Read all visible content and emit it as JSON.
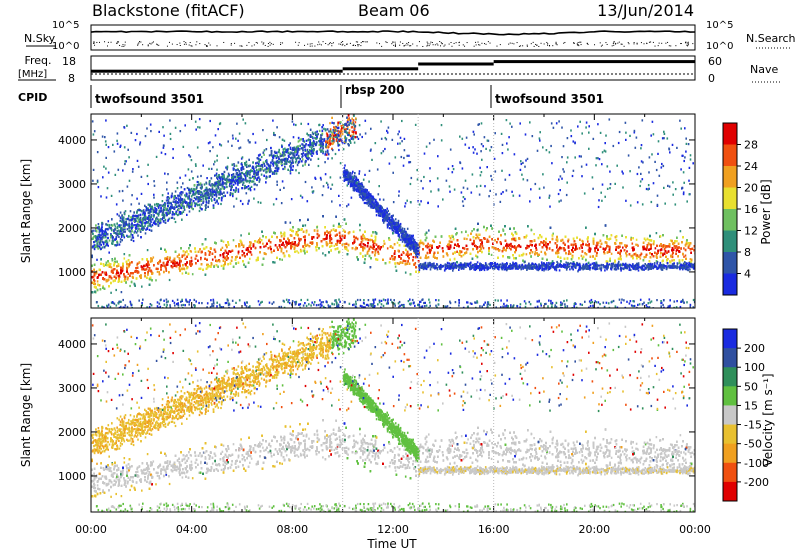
{
  "header": {
    "station": "Blackstone (fitACF)",
    "beam": "Beam 06",
    "date": "13/Jun/2014"
  },
  "labels": {
    "nsky": "N.Sky",
    "nsearch": "N.Search",
    "freq_top": "Freq.",
    "freq_unit": "[MHz]",
    "nave": "Nave",
    "cpid": "CPID",
    "xlabel": "Time UT",
    "ylabel": "Slant Range [km]",
    "power_cb": "Power [dB]",
    "vel_cb": "Velocity [m s⁻¹]"
  },
  "chart_data": [
    {
      "type": "line",
      "name": "noise-panel",
      "left_ticks": [
        "10^5",
        "10^0"
      ],
      "right_ticks": [
        "10^5",
        "10^0"
      ]
    },
    {
      "type": "line",
      "name": "freq-nave-panel",
      "left_ticks": [
        "18",
        "8"
      ],
      "right_ticks": [
        "60",
        "0"
      ],
      "xlim": [
        0,
        24
      ],
      "nave_steps": [
        {
          "x0": 0,
          "x1": 10,
          "v": 22
        },
        {
          "x0": 10,
          "x1": 13,
          "v": 28
        },
        {
          "x0": 13,
          "x1": 16,
          "v": 40
        },
        {
          "x0": 16,
          "x1": 24,
          "v": 46
        }
      ],
      "freq_level": 10.5
    },
    {
      "type": "table",
      "name": "cpid-panel",
      "programs": [
        {
          "label": "twofsound 3501",
          "start": 0,
          "end": 10
        },
        {
          "label": "rbsp 200",
          "start": 10,
          "end": 16
        },
        {
          "label": "twofsound 3501",
          "start": 16,
          "end": 24
        }
      ]
    },
    {
      "type": "heatmap",
      "name": "power",
      "x_ticks": [
        "00:00",
        "04:00",
        "08:00",
        "12:00",
        "16:00",
        "20:00",
        "00:00"
      ],
      "xlim": [
        0,
        24
      ],
      "ylim": [
        180,
        4590
      ],
      "y_ticks": [
        1000,
        2000,
        3000,
        4000
      ],
      "colorbar_ticks": [
        "28",
        "24",
        "20",
        "16",
        "12",
        "8",
        "4"
      ],
      "colors": [
        "#1a2be0",
        "#2f55a8",
        "#2f8f7a",
        "#6fc060",
        "#e8e030",
        "#f0a020",
        "#f05010",
        "#e00000"
      ]
    },
    {
      "type": "heatmap",
      "name": "velocity",
      "x_ticks": [
        "00:00",
        "04:00",
        "08:00",
        "12:00",
        "16:00",
        "20:00",
        "00:00"
      ],
      "xlim": [
        0,
        24
      ],
      "ylim": [
        180,
        4590
      ],
      "y_ticks": [
        1000,
        2000,
        3000,
        4000
      ],
      "colorbar_ticks": [
        "200",
        "100",
        "50",
        "15",
        "-15",
        "-50",
        "-100",
        "-200"
      ],
      "colors": [
        "#e00000",
        "#f05010",
        "#f0a020",
        "#e8c030",
        "#c8c8c8",
        "#60c040",
        "#2f8f5a",
        "#3050a0",
        "#1a2be0"
      ]
    }
  ]
}
